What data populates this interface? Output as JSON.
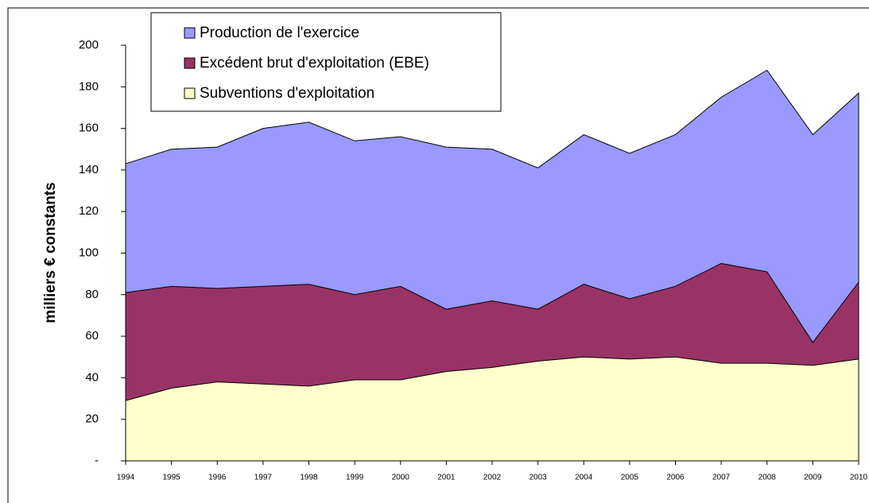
{
  "chart_data": {
    "type": "area",
    "stacked": false,
    "ylabel": "milliers € constants",
    "categories": [
      "1994",
      "1995",
      "1996",
      "1997",
      "1998",
      "1999",
      "2000",
      "2001",
      "2002",
      "2003",
      "2004",
      "2005",
      "2006",
      "2007",
      "2008",
      "2009",
      "2010"
    ],
    "series": [
      {
        "name": "Production de l'exercice",
        "color": "#9999ff",
        "values": [
          143,
          150,
          151,
          160,
          163,
          154,
          156,
          151,
          150,
          141,
          157,
          148,
          157,
          175,
          188,
          157,
          177
        ]
      },
      {
        "name": "Excédent brut d'exploitation (EBE)",
        "color": "#993366",
        "values": [
          81,
          84,
          83,
          84,
          85,
          80,
          84,
          73,
          77,
          73,
          85,
          78,
          84,
          95,
          91,
          57,
          86
        ]
      },
      {
        "name": "Subventions d'exploitation",
        "color": "#ffffcc",
        "values": [
          29,
          35,
          38,
          37,
          36,
          39,
          39,
          43,
          45,
          48,
          50,
          49,
          50,
          47,
          47,
          46,
          49
        ]
      }
    ],
    "ylim": [
      0,
      200
    ],
    "yticks": [
      {
        "value": 0,
        "label": "-"
      },
      20,
      40,
      60,
      80,
      100,
      120,
      140,
      160,
      180,
      200
    ]
  }
}
